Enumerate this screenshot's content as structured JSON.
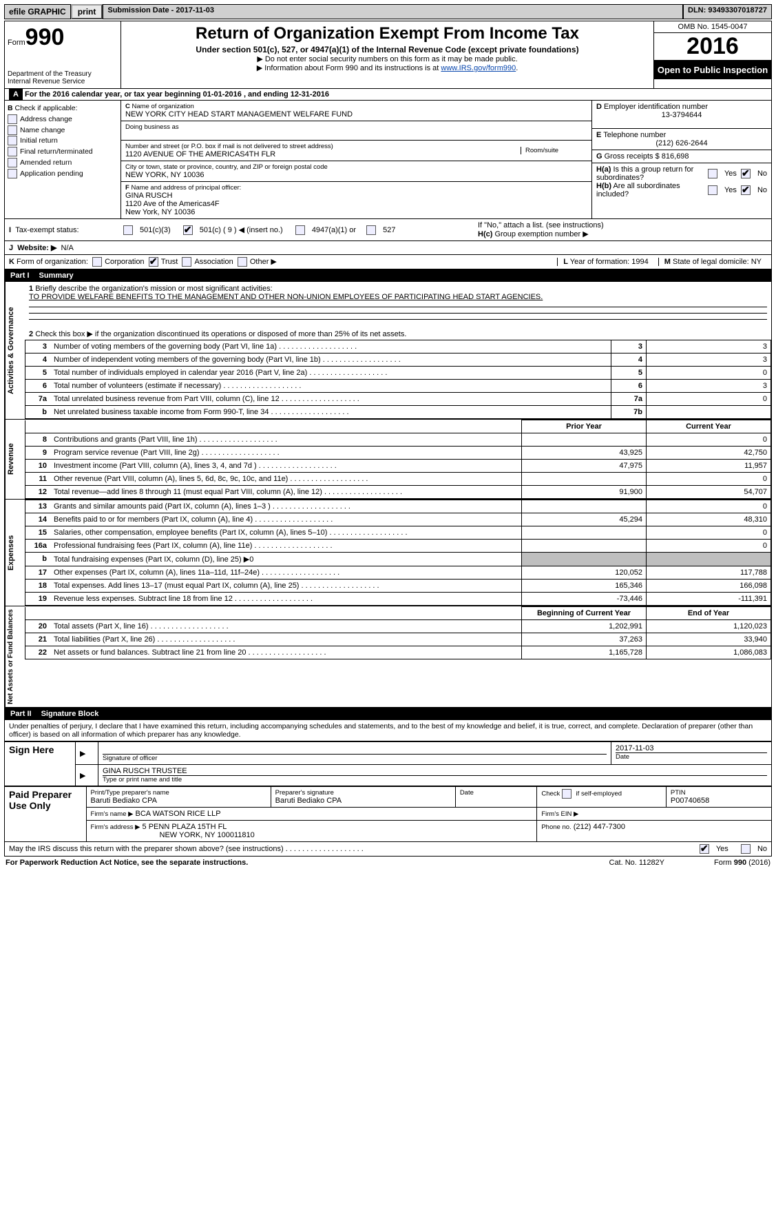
{
  "topbar": {
    "efile": "efile GRAPHIC",
    "print": "print",
    "submission": "Submission Date - 2017-11-03",
    "dln": "DLN: 93493307018727"
  },
  "header": {
    "form_label": "Form",
    "form_number": "990",
    "dept1": "Department of the Treasury",
    "dept2": "Internal Revenue Service",
    "title": "Return of Organization Exempt From Income Tax",
    "subtitle": "Under section 501(c), 527, or 4947(a)(1) of the Internal Revenue Code (except private foundations)",
    "note1": "▶ Do not enter social security numbers on this form as it may be made public.",
    "note2_prefix": "▶ Information about Form 990 and its instructions is at ",
    "note2_link": "www.IRS.gov/form990",
    "omb": "OMB No. 1545-0047",
    "year": "2016",
    "inspection": "Open to Public Inspection"
  },
  "A": {
    "bar": "For the 2016 calendar year, or tax year beginning 01-01-2016   , and ending 12-31-2016",
    "B_label": "Check if applicable:",
    "B_items": [
      "Address change",
      "Name change",
      "Initial return",
      "Final return/terminated",
      "Amended return",
      "Application pending"
    ],
    "C_label": "Name of organization",
    "C_name": "NEW YORK CITY HEAD START MANAGEMENT WELFARE FUND",
    "dba_label": "Doing business as",
    "street_label": "Number and street (or P.O. box if mail is not delivered to street address)",
    "room_label": "Room/suite",
    "street": "1120 AVENUE OF THE AMERICAS4TH FLR",
    "city_label": "City or town, state or province, country, and ZIP or foreign postal code",
    "city": "NEW YORK, NY  10036",
    "F_label": "Name and address of principal officer:",
    "F_name": "GINA RUSCH",
    "F_addr1": "1120 Ave of the Americas4F",
    "F_addr2": "New York, NY  10036",
    "D_label": "Employer identification number",
    "D_val": "13-3794644",
    "E_label": "Telephone number",
    "E_val": "(212) 626-2644",
    "G_label": "Gross receipts $",
    "G_val": "816,698",
    "Ha_label": "Is this a group return for subordinates?",
    "Hb_label": "Are all subordinates included?",
    "H_note": "If \"No,\" attach a list. (see instructions)",
    "Hc_label": "Group exemption number ▶",
    "yes": "Yes",
    "no": "No"
  },
  "I": {
    "label": "Tax-exempt status:",
    "opts": [
      "501(c)(3)",
      "501(c) ( 9 ) ◀ (insert no.)",
      "4947(a)(1) or",
      "527"
    ]
  },
  "J": {
    "label": "Website: ▶",
    "val": "N/A"
  },
  "K": {
    "label": "Form of organization:",
    "opts": [
      "Corporation",
      "Trust",
      "Association",
      "Other ▶"
    ],
    "L_label": "Year of formation:",
    "L_val": "1994",
    "M_label": "State of legal domicile:",
    "M_val": "NY"
  },
  "part1": {
    "tag": "Part I",
    "title": "Summary"
  },
  "summary": {
    "gov_label": "Activities & Governance",
    "line1_label": "Briefly describe the organization's mission or most significant activities:",
    "line1_text": "TO PROVIDE WELFARE BENEFITS TO THE MANAGEMENT AND OTHER NON-UNION EMPLOYEES OF PARTICIPATING HEAD START AGENCIES.",
    "line2": "Check this box ▶       if the organization discontinued its operations or disposed of more than 25% of its net assets.",
    "rows_gov": [
      {
        "n": "3",
        "t": "Number of voting members of the governing body (Part VI, line 1a)",
        "box": "3",
        "v": "3"
      },
      {
        "n": "4",
        "t": "Number of independent voting members of the governing body (Part VI, line 1b)",
        "box": "4",
        "v": "3"
      },
      {
        "n": "5",
        "t": "Total number of individuals employed in calendar year 2016 (Part V, line 2a)",
        "box": "5",
        "v": "0"
      },
      {
        "n": "6",
        "t": "Total number of volunteers (estimate if necessary)",
        "box": "6",
        "v": "3"
      },
      {
        "n": "7a",
        "t": "Total unrelated business revenue from Part VIII, column (C), line 12",
        "box": "7a",
        "v": "0"
      },
      {
        "n": "b",
        "t": "Net unrelated business taxable income from Form 990-T, line 34",
        "box": "7b",
        "v": ""
      }
    ],
    "rev_label": "Revenue",
    "col_prior": "Prior Year",
    "col_curr": "Current Year",
    "rows_rev": [
      {
        "n": "8",
        "t": "Contributions and grants (Part VIII, line 1h)",
        "p": "",
        "c": "0"
      },
      {
        "n": "9",
        "t": "Program service revenue (Part VIII, line 2g)",
        "p": "43,925",
        "c": "42,750"
      },
      {
        "n": "10",
        "t": "Investment income (Part VIII, column (A), lines 3, 4, and 7d )",
        "p": "47,975",
        "c": "11,957"
      },
      {
        "n": "11",
        "t": "Other revenue (Part VIII, column (A), lines 5, 6d, 8c, 9c, 10c, and 11e)",
        "p": "",
        "c": "0"
      },
      {
        "n": "12",
        "t": "Total revenue—add lines 8 through 11 (must equal Part VIII, column (A), line 12)",
        "p": "91,900",
        "c": "54,707"
      }
    ],
    "exp_label": "Expenses",
    "rows_exp": [
      {
        "n": "13",
        "t": "Grants and similar amounts paid (Part IX, column (A), lines 1–3 )",
        "p": "",
        "c": "0"
      },
      {
        "n": "14",
        "t": "Benefits paid to or for members (Part IX, column (A), line 4)",
        "p": "45,294",
        "c": "48,310"
      },
      {
        "n": "15",
        "t": "Salaries, other compensation, employee benefits (Part IX, column (A), lines 5–10)",
        "p": "",
        "c": "0"
      },
      {
        "n": "16a",
        "t": "Professional fundraising fees (Part IX, column (A), line 11e)",
        "p": "",
        "c": "0"
      },
      {
        "n": "b",
        "t": "Total fundraising expenses (Part IX, column (D), line 25) ▶0",
        "p": null,
        "c": null
      },
      {
        "n": "17",
        "t": "Other expenses (Part IX, column (A), lines 11a–11d, 11f–24e)",
        "p": "120,052",
        "c": "117,788"
      },
      {
        "n": "18",
        "t": "Total expenses. Add lines 13–17 (must equal Part IX, column (A), line 25)",
        "p": "165,346",
        "c": "166,098"
      },
      {
        "n": "19",
        "t": "Revenue less expenses. Subtract line 18 from line 12",
        "p": "-73,446",
        "c": "-111,391"
      }
    ],
    "net_label": "Net Assets or Fund Balances",
    "col_beg": "Beginning of Current Year",
    "col_end": "End of Year",
    "rows_net": [
      {
        "n": "20",
        "t": "Total assets (Part X, line 16)",
        "p": "1,202,991",
        "c": "1,120,023"
      },
      {
        "n": "21",
        "t": "Total liabilities (Part X, line 26)",
        "p": "37,263",
        "c": "33,940"
      },
      {
        "n": "22",
        "t": "Net assets or fund balances. Subtract line 21 from line 20",
        "p": "1,165,728",
        "c": "1,086,083"
      }
    ]
  },
  "part2": {
    "tag": "Part II",
    "title": "Signature Block"
  },
  "sig": {
    "perjury": "Under penalties of perjury, I declare that I have examined this return, including accompanying schedules and statements, and to the best of my knowledge and belief, it is true, correct, and complete. Declaration of preparer (other than officer) is based on all information of which preparer has any knowledge.",
    "sign_here": "Sign Here",
    "sig_officer": "Signature of officer",
    "date": "Date",
    "date_val": "2017-11-03",
    "name_title": "GINA RUSCH TRUSTEE",
    "type_label": "Type or print name and title",
    "paid": "Paid Preparer Use Only",
    "prep_name_lbl": "Print/Type preparer's name",
    "prep_name": "Baruti Bediako CPA",
    "prep_sig_lbl": "Preparer's signature",
    "prep_sig": "Baruti Bediako CPA",
    "prep_date_lbl": "Date",
    "check_self": "Check        if self-employed",
    "ptin_lbl": "PTIN",
    "ptin": "P00740658",
    "firm_name_lbl": "Firm's name    ▶",
    "firm_name": "BCA WATSON RICE LLP",
    "firm_ein_lbl": "Firm's EIN ▶",
    "firm_addr_lbl": "Firm's address ▶",
    "firm_addr": "5 PENN PLAZA 15TH FL",
    "firm_city": "NEW YORK, NY  100011810",
    "firm_phone_lbl": "Phone no.",
    "firm_phone": "(212) 447-7300",
    "may_irs": "May the IRS discuss this return with the preparer shown above? (see instructions)",
    "yes": "Yes",
    "no": "No"
  },
  "footer": {
    "pra": "For Paperwork Reduction Act Notice, see the separate instructions.",
    "cat": "Cat. No. 11282Y",
    "form": "Form 990 (2016)"
  },
  "colors": {
    "link": "#0645ad",
    "shade": "#bfbfbf",
    "topbar": "#d0d0d0"
  }
}
